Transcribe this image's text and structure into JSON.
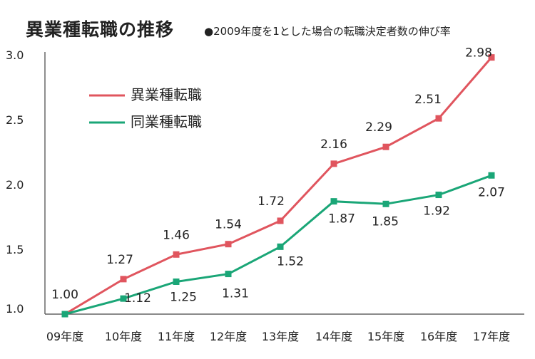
{
  "chart_data": {
    "type": "line",
    "title": "異業種転職の推移",
    "subtitle": "●2009年度を1とした場合の転職決定者数の伸び率",
    "categories": [
      "09年度",
      "10年度",
      "11年度",
      "12年度",
      "13年度",
      "14年度",
      "15年度",
      "16年度",
      "17年度"
    ],
    "ylim": [
      1.0,
      3.0
    ],
    "yticks": [
      "1.0",
      "1.5",
      "2.0",
      "2.5",
      "3.0"
    ],
    "grid": false,
    "legend_position": "top-left",
    "series": [
      {
        "name": "異業種転職",
        "color": "#e0555e",
        "values": [
          1.0,
          1.27,
          1.46,
          1.54,
          1.72,
          2.16,
          2.29,
          2.51,
          2.98
        ],
        "labels": [
          "1.00",
          "1.27",
          "1.46",
          "1.54",
          "1.72",
          "2.16",
          "2.29",
          "2.51",
          "2.98"
        ]
      },
      {
        "name": "同業種転職",
        "color": "#1aa677",
        "values": [
          1.0,
          1.12,
          1.25,
          1.31,
          1.52,
          1.87,
          1.85,
          1.92,
          2.07
        ],
        "labels": [
          "",
          "1.12",
          "1.25",
          "1.31",
          "1.52",
          "1.87",
          "1.85",
          "1.92",
          "2.07"
        ]
      }
    ]
  }
}
